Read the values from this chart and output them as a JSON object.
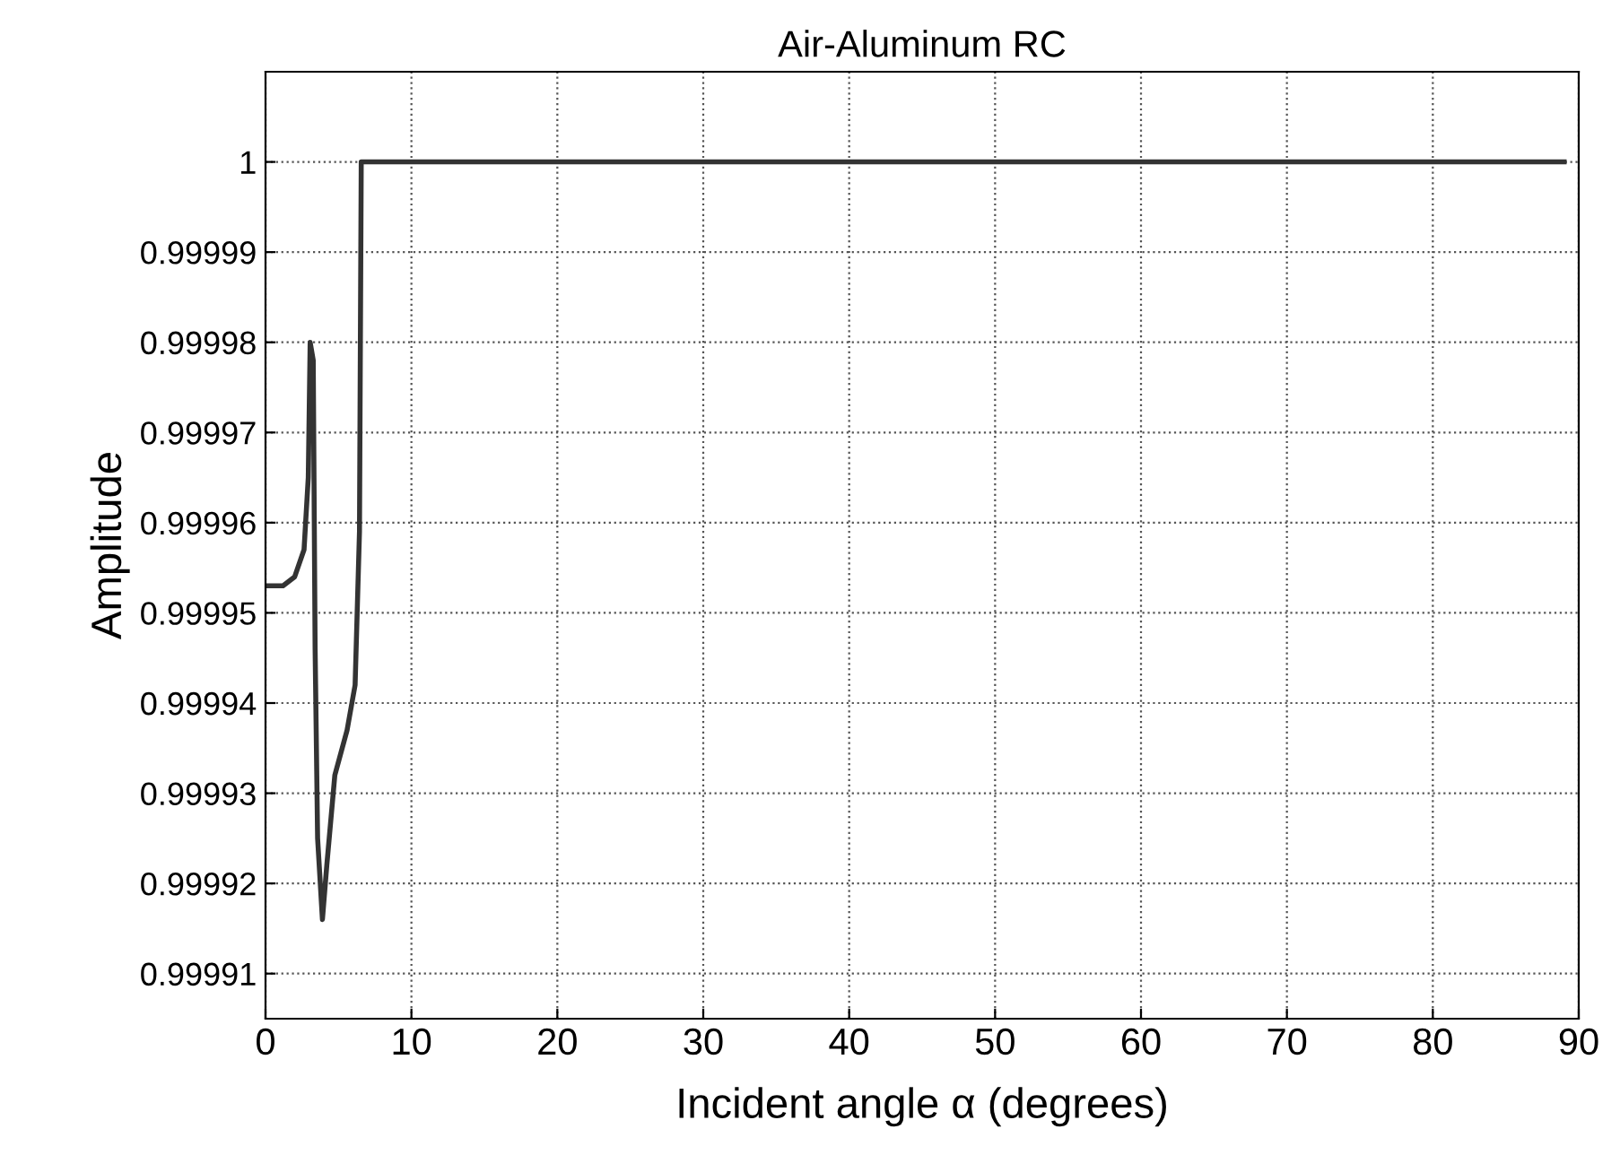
{
  "chart_data": {
    "type": "line",
    "title": "Air-Aluminum RC",
    "xlabel": "Incident angle α (degrees)",
    "ylabel": "Amplitude",
    "series": [
      {
        "color": "#333333",
        "x": [
          0,
          1.2,
          2.0,
          2.64,
          2.93,
          3.06,
          3.27,
          3.4,
          3.57,
          3.9,
          4.2,
          4.75,
          5.59,
          6.14,
          6.44,
          6.56,
          89
        ],
        "values": [
          0.999953,
          0.999953,
          0.999954,
          0.999957,
          0.999965,
          0.99998,
          0.999978,
          0.999946,
          0.999925,
          0.999916,
          0.999922,
          0.999932,
          0.999937,
          0.999942,
          0.999959,
          1.0,
          1.0
        ]
      }
    ],
    "xlim": [
      0,
      90
    ],
    "xticks": [
      0,
      10,
      20,
      30,
      40,
      50,
      60,
      70,
      80,
      90
    ],
    "ylim": [
      0.999905,
      1.00001
    ],
    "yticks": [
      0.99991,
      0.99992,
      0.99993,
      0.99994,
      0.99995,
      0.99996,
      0.99997,
      0.99998,
      0.99999,
      1
    ],
    "grid": true,
    "line_style": "solid",
    "marker": "none"
  }
}
